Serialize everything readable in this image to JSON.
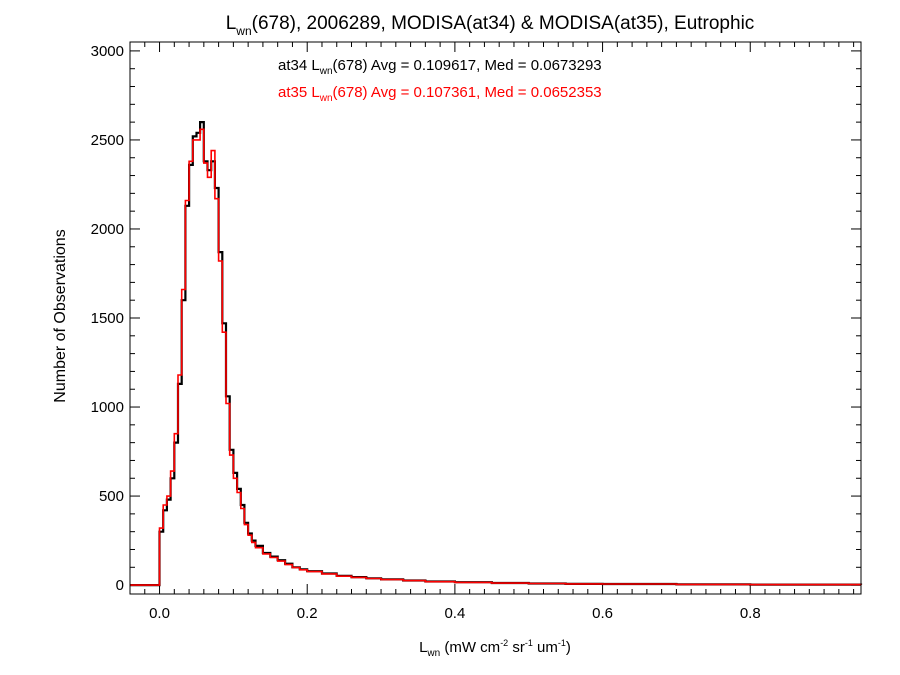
{
  "chart_data": {
    "type": "line",
    "title": {
      "main": "L",
      "sub": "wn",
      "rest": "(678), 2006289, MODISA(at34) & MODISA(at35), Eutrophic"
    },
    "xlabel": {
      "main": "L",
      "sub": "wn",
      "units_pre": " (mW cm",
      "sup1": "-2",
      "units_mid1": " sr",
      "sup2": "-1",
      "units_mid2": " um",
      "sup3": "-1",
      "units_post": ")"
    },
    "ylabel": "Number of Observations",
    "xlim": [
      -0.04,
      0.95
    ],
    "ylim": [
      -50,
      3050
    ],
    "xticks": [
      "0.0",
      "0.2",
      "0.4",
      "0.6",
      "0.8"
    ],
    "xtick_values": [
      0.0,
      0.2,
      0.4,
      0.6,
      0.8
    ],
    "yticks": [
      "0",
      "500",
      "1000",
      "1500",
      "2000",
      "2500",
      "3000"
    ],
    "ytick_values": [
      0,
      500,
      1000,
      1500,
      2000,
      2500,
      3000
    ],
    "annotations": [
      {
        "pre": "at34 L",
        "sub": "wn",
        "post": "(678) Avg = 0.109617, Med = 0.0673293",
        "color": "#000000"
      },
      {
        "pre": "at35 L",
        "sub": "wn",
        "post": "(678) Avg = 0.107361, Med = 0.0652353",
        "color": "#ff0000"
      }
    ],
    "series": [
      {
        "color": "#000000",
        "x": [
          -0.04,
          -0.002,
          0.0,
          0.005,
          0.01,
          0.015,
          0.02,
          0.025,
          0.03,
          0.035,
          0.04,
          0.045,
          0.05,
          0.055,
          0.06,
          0.065,
          0.07,
          0.075,
          0.08,
          0.085,
          0.09,
          0.095,
          0.1,
          0.105,
          0.11,
          0.115,
          0.12,
          0.125,
          0.13,
          0.14,
          0.15,
          0.16,
          0.17,
          0.18,
          0.19,
          0.2,
          0.22,
          0.24,
          0.26,
          0.28,
          0.3,
          0.33,
          0.36,
          0.4,
          0.45,
          0.5,
          0.55,
          0.6,
          0.7,
          0.8,
          0.95
        ],
        "y": [
          0,
          0,
          300,
          420,
          480,
          600,
          800,
          1130,
          1600,
          2130,
          2360,
          2520,
          2540,
          2600,
          2380,
          2330,
          2380,
          2230,
          1870,
          1470,
          1060,
          760,
          630,
          540,
          450,
          350,
          290,
          250,
          220,
          180,
          160,
          140,
          120,
          100,
          88,
          78,
          65,
          52,
          45,
          38,
          32,
          26,
          20,
          16,
          12,
          9,
          7,
          6,
          4,
          3,
          2
        ]
      },
      {
        "color": "#ff0000",
        "x": [
          -0.04,
          -0.002,
          0.0,
          0.005,
          0.01,
          0.015,
          0.02,
          0.025,
          0.03,
          0.035,
          0.04,
          0.045,
          0.05,
          0.055,
          0.06,
          0.065,
          0.07,
          0.075,
          0.08,
          0.085,
          0.09,
          0.095,
          0.1,
          0.105,
          0.11,
          0.115,
          0.12,
          0.125,
          0.13,
          0.14,
          0.15,
          0.16,
          0.17,
          0.18,
          0.19,
          0.2,
          0.22,
          0.24,
          0.26,
          0.28,
          0.3,
          0.33,
          0.36,
          0.4,
          0.45,
          0.5,
          0.55,
          0.6,
          0.7,
          0.8,
          0.95
        ],
        "y": [
          0,
          0,
          320,
          450,
          500,
          640,
          850,
          1180,
          1660,
          2160,
          2380,
          2500,
          2500,
          2560,
          2370,
          2290,
          2440,
          2170,
          1820,
          1420,
          1020,
          730,
          600,
          520,
          430,
          340,
          280,
          240,
          210,
          175,
          155,
          135,
          115,
          98,
          86,
          76,
          63,
          50,
          43,
          37,
          31,
          25,
          19,
          15,
          11,
          9,
          7,
          6,
          4,
          3,
          2
        ]
      }
    ]
  }
}
